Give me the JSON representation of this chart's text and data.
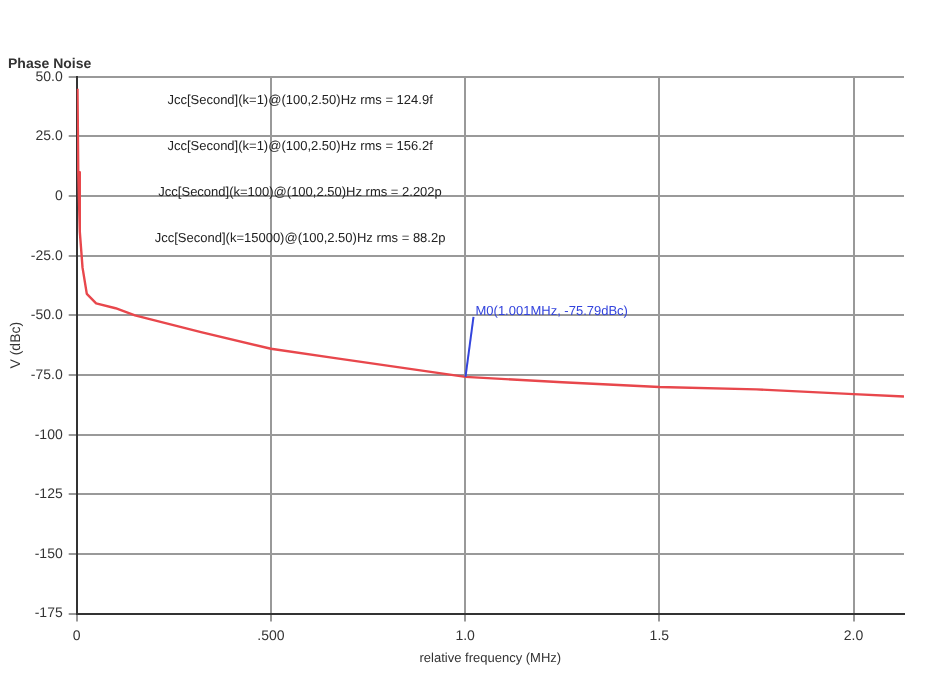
{
  "chart_data": {
    "type": "line",
    "title": "Phase Noise",
    "xlabel": "relative frequency (MHz)",
    "ylabel": "V (dBc)",
    "x": [
      0.002,
      0.004,
      0.008,
      0.015,
      0.026,
      0.05,
      0.1,
      0.15,
      0.32,
      0.5,
      0.67,
      0.84,
      1.001,
      1.25,
      1.5,
      1.75,
      2.0,
      2.13
    ],
    "series": [
      {
        "color": "#e8474c",
        "values": [
          45,
          10,
          -15,
          -30,
          -41,
          -45,
          -47,
          -50,
          -57,
          -64,
          -68,
          -72,
          -75.79,
          -78,
          -80,
          -81,
          -83,
          -84
        ]
      }
    ],
    "xlim": [
      0,
      2.13
    ],
    "xticks": [
      0,
      {
        "value": 0.5,
        "label": ".500"
      },
      {
        "value": 1,
        "label": "1.0"
      },
      1.5,
      {
        "value": 2,
        "label": "2.0"
      }
    ],
    "ylim": [
      -175,
      50
    ],
    "yticks": [
      -175,
      -150,
      -125,
      -100,
      {
        "value": -75,
        "label": "-75.0"
      },
      {
        "value": -50,
        "label": "-50.0"
      },
      {
        "value": -25,
        "label": "-25.0"
      },
      0,
      {
        "value": 25,
        "label": "25.0"
      },
      {
        "value": 50,
        "label": "50.0"
      }
    ],
    "grid": true,
    "marker": "none",
    "line_style": "solid",
    "annotations": [
      "Jcc[Second](k=1)@(100,2.50)Hz rms = 124.9f",
      "Jcc[Second](k=1)@(100,2.50)Hz rms = 156.2f",
      "Jcc[Second](k=100)@(100,2.50)Hz rms = 2.202p",
      "Jcc[Second](k=15000)@(100,2.50)Hz rms = 88.2p",
      {
        "text": "M0(1.001MHz, -75.79dBc)",
        "x": 1.001,
        "y": -75.79
      }
    ]
  }
}
